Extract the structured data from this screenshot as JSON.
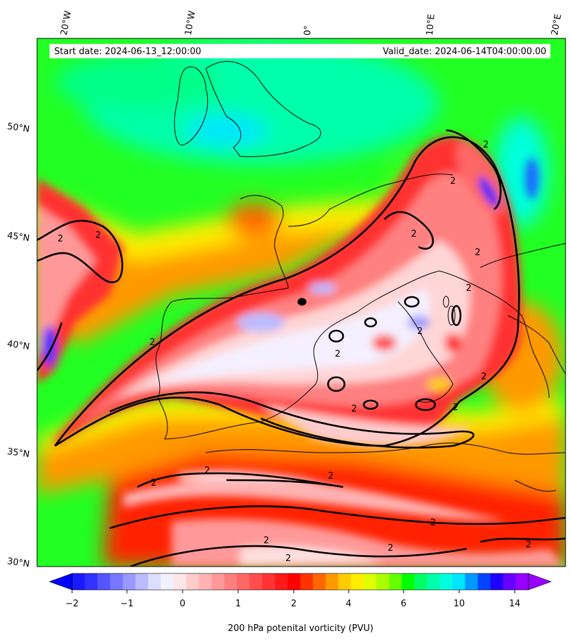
{
  "header": {
    "start_date": "Start date: 2024-06-13_12:00:00",
    "valid_date": "Valid_date: 2024-06-14T04:00:00.00"
  },
  "axes": {
    "lon_labels": [
      "20°W",
      "10°W",
      "0°",
      "10°E",
      "20°E"
    ],
    "lat_labels": [
      "50°N",
      "45°N",
      "40°N",
      "35°N",
      "30°N"
    ]
  },
  "colorbar": {
    "label": "200 hPa potenital vorticity (PVU)",
    "tick_labels": [
      "−2",
      "−1",
      "0",
      "1",
      "2",
      "4",
      "6",
      "10",
      "14"
    ],
    "colors": [
      "#1a1aff",
      "#3333ff",
      "#5555ff",
      "#7777ff",
      "#9999ff",
      "#bbbbff",
      "#ddddff",
      "#f2f2ff",
      "#ffe6e6",
      "#ffcccc",
      "#ffb3b3",
      "#ff9999",
      "#ff7f7f",
      "#ff6666",
      "#ff4c4c",
      "#ff3333",
      "#ff1a1a",
      "#ff0000",
      "#ff3300",
      "#ff6600",
      "#ff9900",
      "#ffcc00",
      "#ffee00",
      "#ddff00",
      "#aaff00",
      "#66ff00",
      "#00ff00",
      "#00ff66",
      "#00ffaa",
      "#00ffdd",
      "#00e5ff",
      "#0099ff",
      "#0044ff",
      "#2200ff",
      "#6600ff",
      "#9900ff"
    ]
  },
  "contour_labels": [
    "2",
    "2",
    "2",
    "2",
    "2",
    "2",
    "2",
    "2",
    "2",
    "2",
    "2",
    "2",
    "2",
    "2",
    "2",
    "2",
    "2",
    "2",
    "2",
    "2",
    "2"
  ]
}
